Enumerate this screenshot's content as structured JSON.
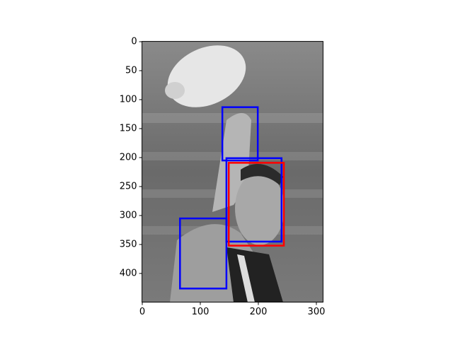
{
  "chart_data": {
    "type": "image-boxes",
    "xlim": [
      -0.5,
      311.5
    ],
    "ylim": [
      449.5,
      -0.5
    ],
    "xticks": [
      0,
      100,
      200,
      300
    ],
    "yticks": [
      0,
      50,
      100,
      150,
      200,
      250,
      300,
      350,
      400
    ],
    "boxes": [
      {
        "color": "#0000ff",
        "x": [
          138,
          199
        ],
        "y": [
          113,
          205
        ]
      },
      {
        "color": "#0000ff",
        "x": [
          145,
          240
        ],
        "y": [
          201,
          345
        ]
      },
      {
        "color": "#0000ff",
        "x": [
          65,
          145
        ],
        "y": [
          305,
          426
        ]
      },
      {
        "color": "#ff0000",
        "x": [
          149,
          244
        ],
        "y": [
          209,
          352
        ]
      }
    ]
  }
}
